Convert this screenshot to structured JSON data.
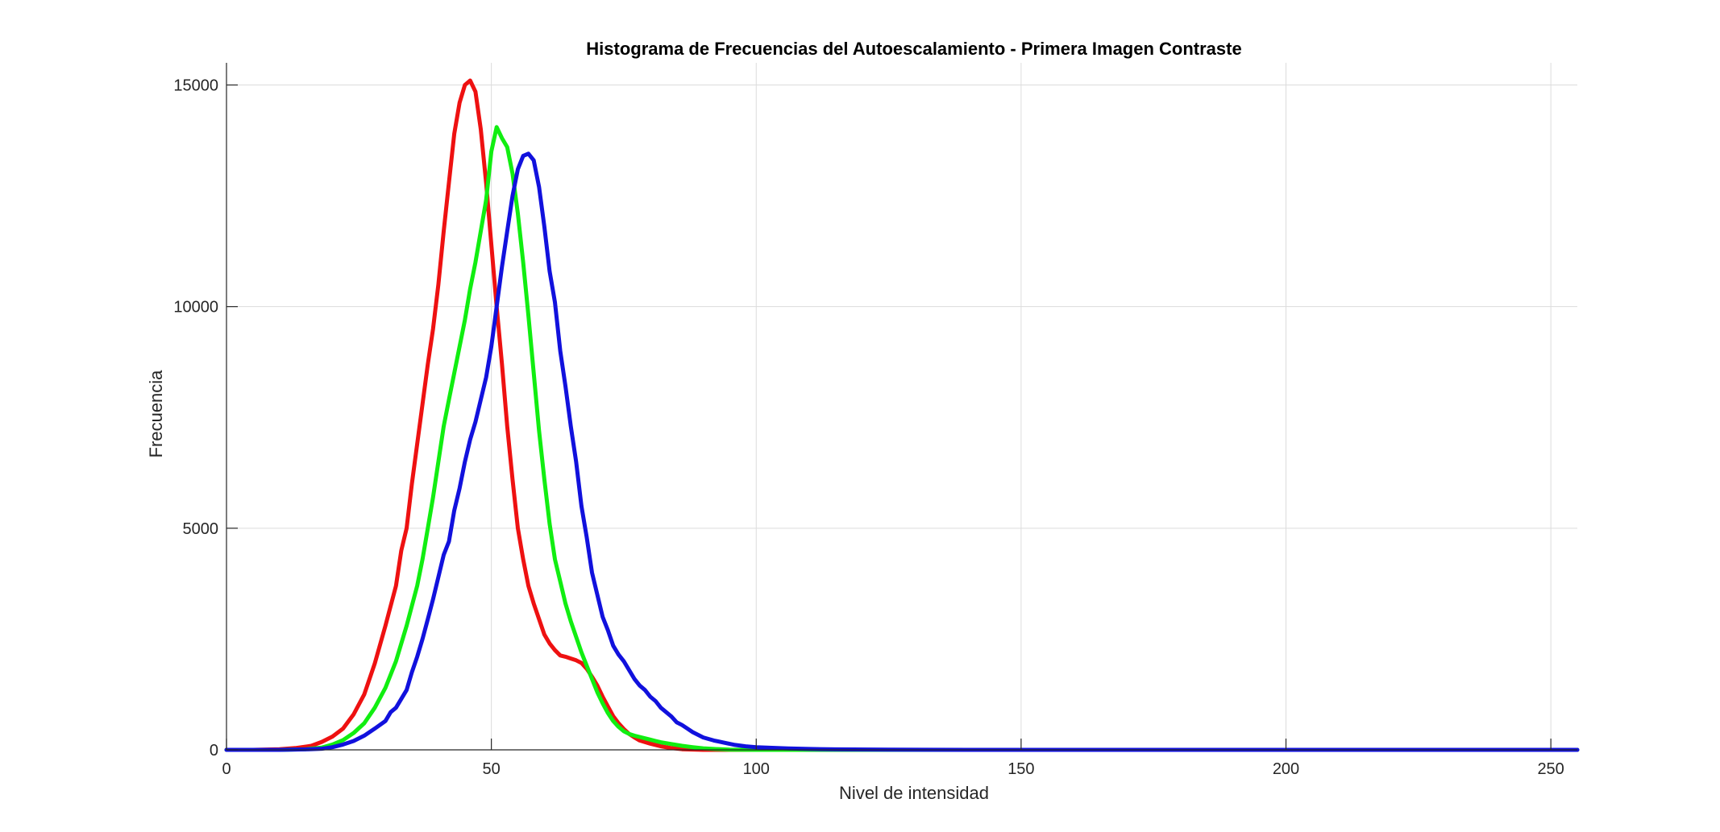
{
  "chart_data": {
    "type": "line",
    "title": "Histograma de Frecuencias del Autoescalamiento - Primera Imagen Contraste",
    "xlabel": "Nivel de intensidad",
    "ylabel": "Frecuencia",
    "xlim": [
      0,
      255
    ],
    "ylim": [
      0,
      15500
    ],
    "xticks": [
      0,
      50,
      100,
      150,
      200,
      250
    ],
    "yticks": [
      0,
      5000,
      10000,
      15000
    ],
    "xtick_labels": [
      "0",
      "50",
      "100",
      "150",
      "200",
      "250"
    ],
    "ytick_labels": [
      "0",
      "5000",
      "10000",
      "15000"
    ],
    "grid": true,
    "legend": "none",
    "series": [
      {
        "color": "#ee1111",
        "points": [
          [
            0,
            0
          ],
          [
            5,
            0
          ],
          [
            10,
            15
          ],
          [
            13,
            40
          ],
          [
            16,
            90
          ],
          [
            18,
            180
          ],
          [
            20,
            300
          ],
          [
            22,
            480
          ],
          [
            24,
            800
          ],
          [
            26,
            1250
          ],
          [
            28,
            1950
          ],
          [
            30,
            2800
          ],
          [
            32,
            3700
          ],
          [
            33,
            4500
          ],
          [
            34,
            5000
          ],
          [
            35,
            6000
          ],
          [
            36,
            6900
          ],
          [
            37,
            7800
          ],
          [
            38,
            8700
          ],
          [
            39,
            9500
          ],
          [
            40,
            10500
          ],
          [
            41,
            11700
          ],
          [
            42,
            12800
          ],
          [
            43,
            13900
          ],
          [
            44,
            14600
          ],
          [
            45,
            15000
          ],
          [
            46,
            15100
          ],
          [
            47,
            14850
          ],
          [
            48,
            14000
          ],
          [
            49,
            12800
          ],
          [
            50,
            11400
          ],
          [
            51,
            10000
          ],
          [
            52,
            8700
          ],
          [
            53,
            7300
          ],
          [
            54,
            6100
          ],
          [
            55,
            5000
          ],
          [
            56,
            4300
          ],
          [
            57,
            3700
          ],
          [
            58,
            3300
          ],
          [
            59,
            2950
          ],
          [
            60,
            2600
          ],
          [
            61,
            2400
          ],
          [
            62,
            2250
          ],
          [
            63,
            2130
          ],
          [
            64,
            2100
          ],
          [
            65,
            2060
          ],
          [
            66,
            2020
          ],
          [
            67,
            1960
          ],
          [
            68,
            1830
          ],
          [
            69,
            1650
          ],
          [
            70,
            1450
          ],
          [
            71,
            1200
          ],
          [
            72,
            980
          ],
          [
            73,
            760
          ],
          [
            74,
            600
          ],
          [
            75,
            470
          ],
          [
            76,
            360
          ],
          [
            77,
            280
          ],
          [
            78,
            210
          ],
          [
            80,
            140
          ],
          [
            82,
            80
          ],
          [
            84,
            40
          ],
          [
            86,
            15
          ],
          [
            90,
            0
          ],
          [
            100,
            0
          ],
          [
            255,
            0
          ]
        ]
      },
      {
        "color": "#11ee11",
        "points": [
          [
            0,
            0
          ],
          [
            10,
            0
          ],
          [
            15,
            15
          ],
          [
            18,
            50
          ],
          [
            20,
            120
          ],
          [
            22,
            220
          ],
          [
            24,
            380
          ],
          [
            26,
            600
          ],
          [
            28,
            950
          ],
          [
            30,
            1400
          ],
          [
            32,
            2000
          ],
          [
            34,
            2800
          ],
          [
            36,
            3700
          ],
          [
            37,
            4300
          ],
          [
            38,
            5000
          ],
          [
            39,
            5700
          ],
          [
            40,
            6500
          ],
          [
            41,
            7300
          ],
          [
            42,
            7900
          ],
          [
            43,
            8500
          ],
          [
            44,
            9100
          ],
          [
            45,
            9700
          ],
          [
            46,
            10400
          ],
          [
            47,
            11000
          ],
          [
            48,
            11700
          ],
          [
            49,
            12400
          ],
          [
            50,
            13500
          ],
          [
            51,
            14050
          ],
          [
            52,
            13800
          ],
          [
            53,
            13600
          ],
          [
            54,
            13000
          ],
          [
            55,
            12100
          ],
          [
            56,
            11000
          ],
          [
            57,
            9800
          ],
          [
            58,
            8500
          ],
          [
            59,
            7200
          ],
          [
            60,
            6100
          ],
          [
            61,
            5100
          ],
          [
            62,
            4300
          ],
          [
            63,
            3800
          ],
          [
            64,
            3300
          ],
          [
            65,
            2900
          ],
          [
            66,
            2550
          ],
          [
            67,
            2200
          ],
          [
            68,
            1900
          ],
          [
            69,
            1600
          ],
          [
            70,
            1300
          ],
          [
            71,
            1050
          ],
          [
            72,
            830
          ],
          [
            73,
            650
          ],
          [
            74,
            520
          ],
          [
            75,
            420
          ],
          [
            76,
            360
          ],
          [
            77,
            320
          ],
          [
            78,
            290
          ],
          [
            79,
            260
          ],
          [
            80,
            230
          ],
          [
            81,
            200
          ],
          [
            82,
            170
          ],
          [
            84,
            130
          ],
          [
            86,
            90
          ],
          [
            88,
            60
          ],
          [
            90,
            35
          ],
          [
            92,
            20
          ],
          [
            95,
            5
          ],
          [
            100,
            0
          ],
          [
            255,
            0
          ]
        ]
      },
      {
        "color": "#1111dd",
        "points": [
          [
            0,
            0
          ],
          [
            10,
            0
          ],
          [
            15,
            10
          ],
          [
            18,
            25
          ],
          [
            20,
            60
          ],
          [
            22,
            120
          ],
          [
            24,
            200
          ],
          [
            26,
            320
          ],
          [
            28,
            480
          ],
          [
            30,
            650
          ],
          [
            31,
            850
          ],
          [
            32,
            950
          ],
          [
            33,
            1150
          ],
          [
            34,
            1350
          ],
          [
            35,
            1750
          ],
          [
            36,
            2100
          ],
          [
            37,
            2500
          ],
          [
            38,
            2950
          ],
          [
            39,
            3400
          ],
          [
            40,
            3900
          ],
          [
            41,
            4400
          ],
          [
            42,
            4700
          ],
          [
            43,
            5400
          ],
          [
            44,
            5900
          ],
          [
            45,
            6500
          ],
          [
            46,
            7000
          ],
          [
            47,
            7400
          ],
          [
            48,
            7900
          ],
          [
            49,
            8400
          ],
          [
            50,
            9100
          ],
          [
            51,
            10000
          ],
          [
            52,
            10900
          ],
          [
            53,
            11700
          ],
          [
            54,
            12500
          ],
          [
            55,
            13100
          ],
          [
            56,
            13400
          ],
          [
            57,
            13450
          ],
          [
            58,
            13300
          ],
          [
            59,
            12700
          ],
          [
            60,
            11800
          ],
          [
            61,
            10800
          ],
          [
            62,
            10100
          ],
          [
            63,
            9000
          ],
          [
            64,
            8200
          ],
          [
            65,
            7300
          ],
          [
            66,
            6500
          ],
          [
            67,
            5500
          ],
          [
            68,
            4800
          ],
          [
            69,
            4000
          ],
          [
            70,
            3500
          ],
          [
            71,
            3000
          ],
          [
            72,
            2700
          ],
          [
            73,
            2350
          ],
          [
            74,
            2150
          ],
          [
            75,
            2000
          ],
          [
            76,
            1800
          ],
          [
            77,
            1600
          ],
          [
            78,
            1450
          ],
          [
            79,
            1350
          ],
          [
            80,
            1200
          ],
          [
            81,
            1100
          ],
          [
            82,
            950
          ],
          [
            83,
            850
          ],
          [
            84,
            750
          ],
          [
            85,
            620
          ],
          [
            86,
            560
          ],
          [
            87,
            480
          ],
          [
            88,
            400
          ],
          [
            90,
            280
          ],
          [
            92,
            210
          ],
          [
            94,
            160
          ],
          [
            96,
            110
          ],
          [
            98,
            80
          ],
          [
            100,
            60
          ],
          [
            103,
            45
          ],
          [
            106,
            30
          ],
          [
            110,
            20
          ],
          [
            115,
            10
          ],
          [
            125,
            5
          ],
          [
            140,
            0
          ],
          [
            255,
            0
          ]
        ]
      }
    ]
  }
}
